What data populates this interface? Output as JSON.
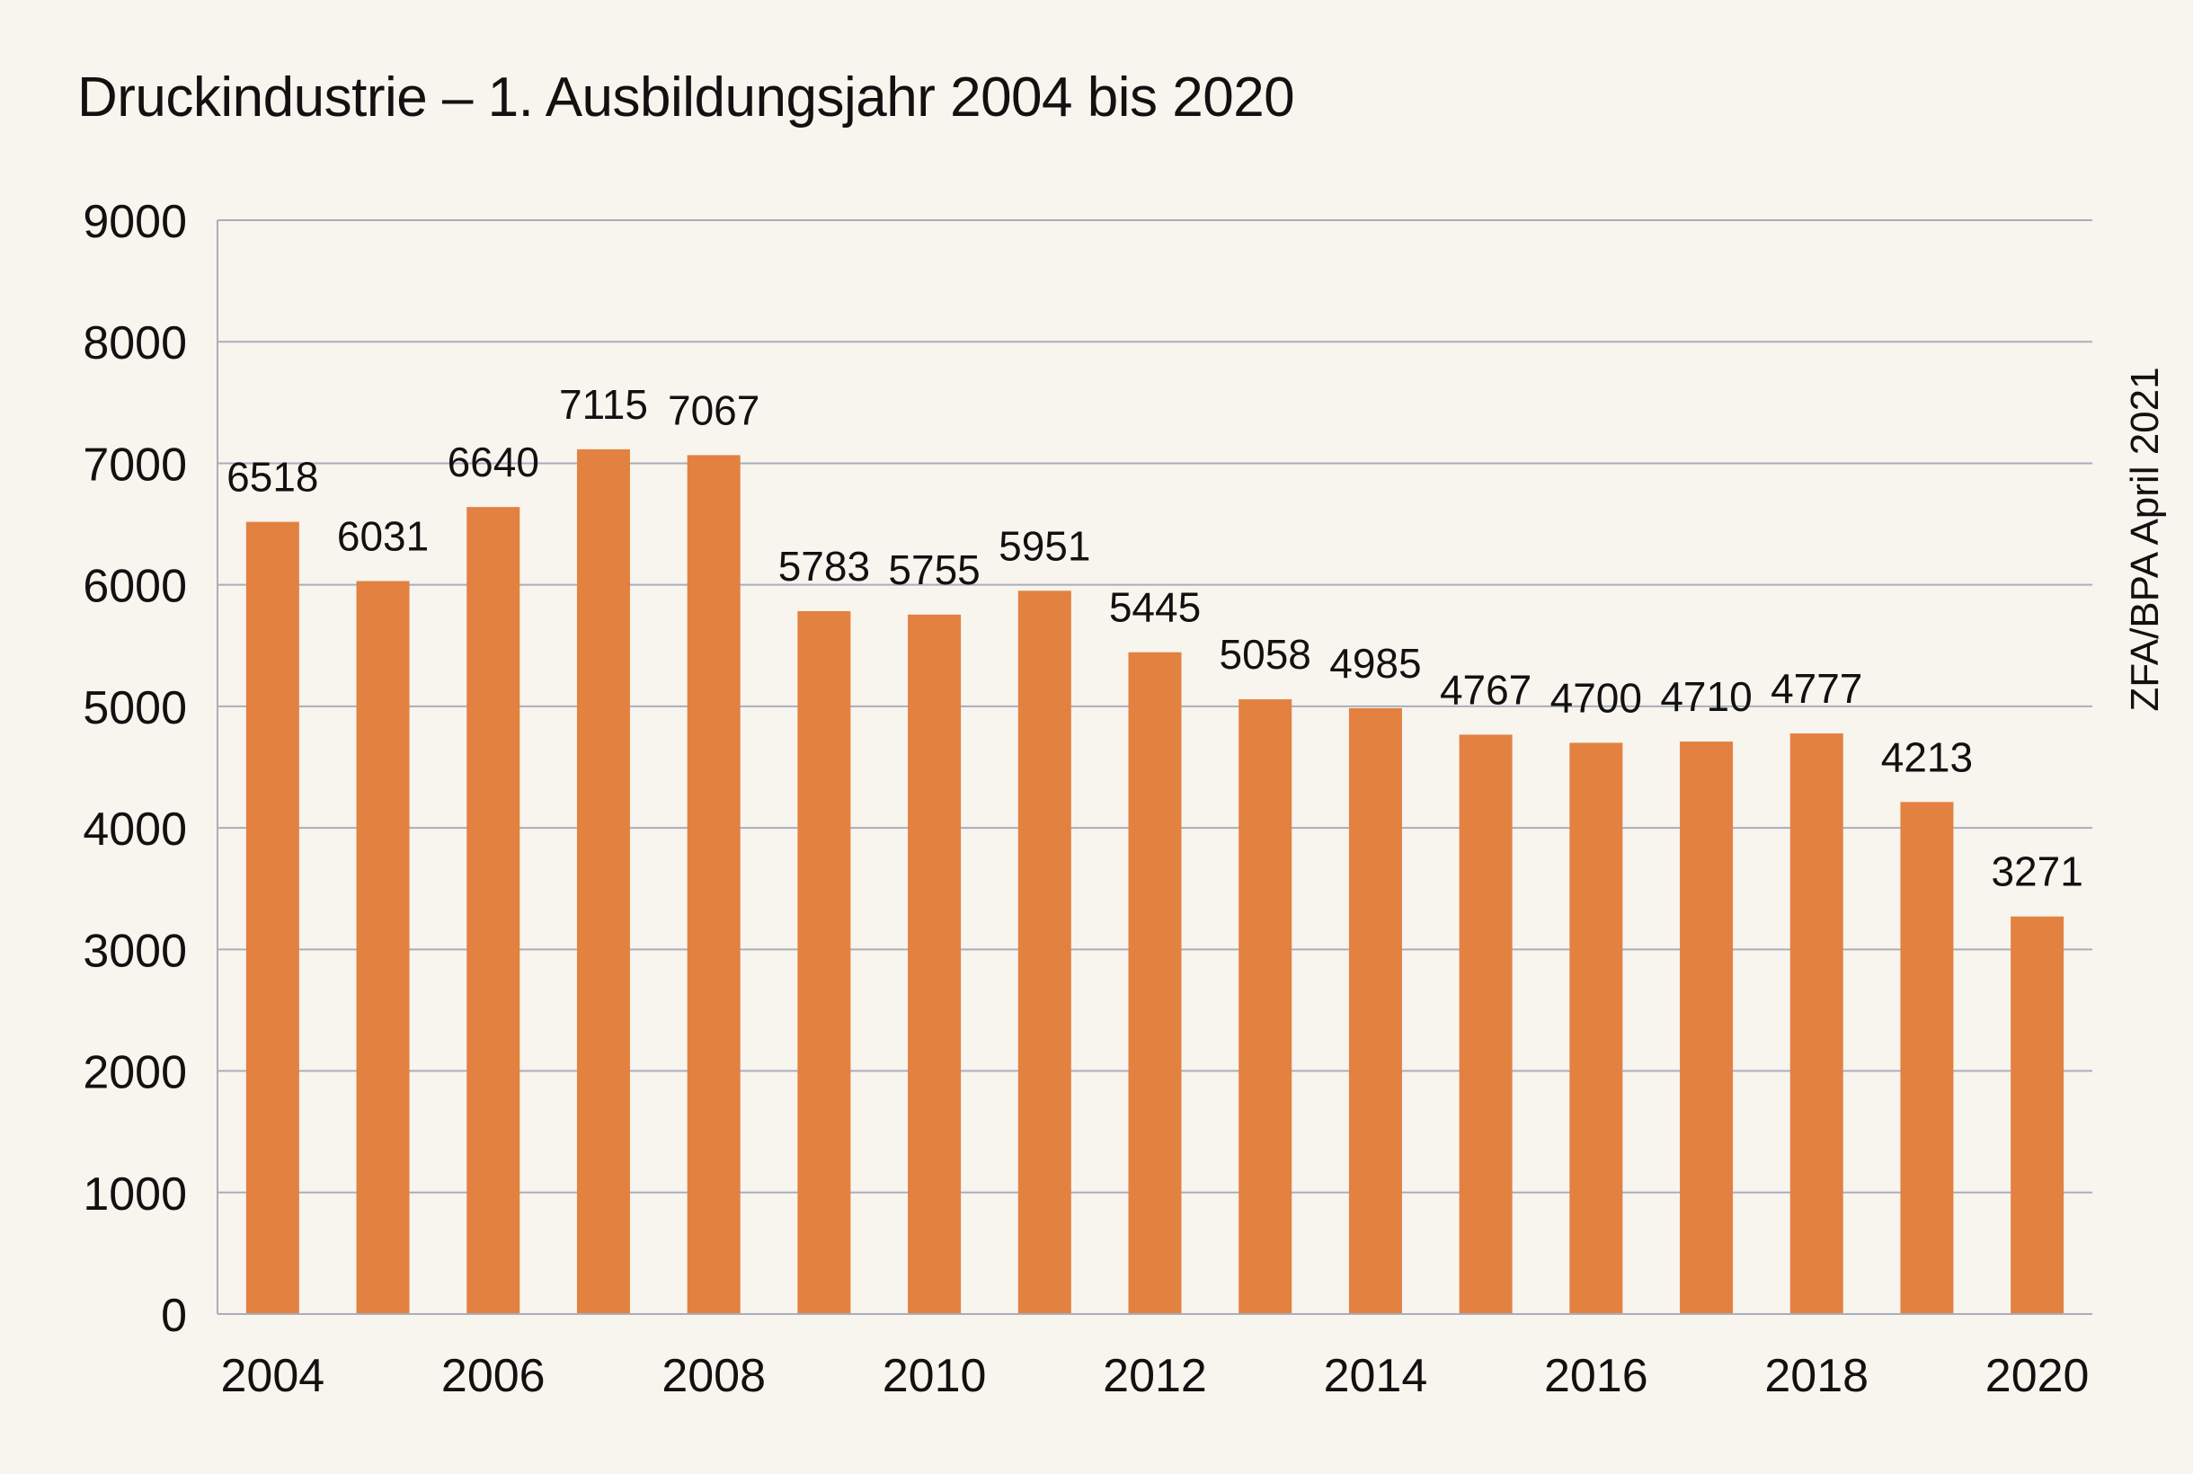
{
  "chart_data": {
    "type": "bar",
    "title": "Druckindustrie – 1. Ausbildungsjahr 2004 bis 2020",
    "xlabel": "",
    "ylabel": "",
    "source": "ZFA/BPA April 2021",
    "categories": [
      "2004",
      "2005",
      "2006",
      "2007",
      "2008",
      "2009",
      "2010",
      "2011",
      "2012",
      "2013",
      "2014",
      "2015",
      "2016",
      "2017",
      "2018",
      "2019",
      "2020"
    ],
    "values": [
      6518,
      6031,
      6640,
      7115,
      7067,
      5783,
      5755,
      5951,
      5445,
      5058,
      4985,
      4767,
      4700,
      4710,
      4777,
      4213,
      3271
    ],
    "x_tick_labels": [
      "2004",
      "2006",
      "2008",
      "2010",
      "2012",
      "2014",
      "2016",
      "2018",
      "2020"
    ],
    "y_ticks": [
      0,
      1000,
      2000,
      3000,
      4000,
      5000,
      6000,
      7000,
      8000,
      9000
    ],
    "ylim": [
      0,
      9000
    ],
    "grid": true,
    "legend": "none",
    "colors": {
      "bar": "#e38141",
      "grid": "#a9aebb",
      "background": "#f8f4ee",
      "text": "#111111"
    }
  }
}
